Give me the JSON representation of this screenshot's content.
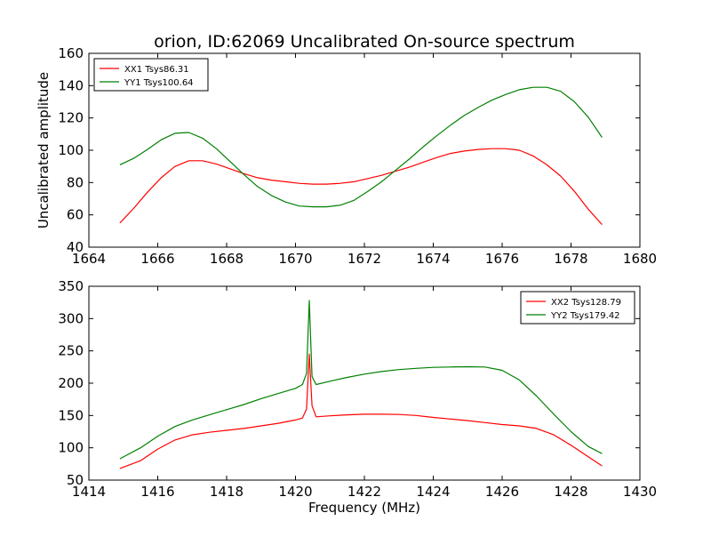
{
  "figure": {
    "title": "orion, ID:62069 Uncalibrated On-source spectrum",
    "xlabel": "Frequency (MHz)",
    "ylabel": "Uncalibrated amplitude"
  },
  "chart_data": [
    {
      "type": "line",
      "xlim": [
        1664,
        1680
      ],
      "ylim": [
        40,
        160
      ],
      "xticks": [
        1664,
        1666,
        1668,
        1670,
        1672,
        1674,
        1676,
        1678,
        1680
      ],
      "yticks": [
        40,
        60,
        80,
        100,
        120,
        140,
        160
      ],
      "legend_position": "top-left",
      "series": [
        {
          "name": "XX1 Tsys86.31",
          "color": "#ff0000",
          "x": [
            1664.9,
            1665.3,
            1665.7,
            1666.1,
            1666.5,
            1666.9,
            1667.3,
            1667.7,
            1668.1,
            1668.5,
            1668.9,
            1669.3,
            1669.7,
            1670.1,
            1670.5,
            1670.9,
            1671.3,
            1671.7,
            1672.1,
            1672.5,
            1672.9,
            1673.3,
            1673.7,
            1674.1,
            1674.5,
            1674.9,
            1675.3,
            1675.7,
            1676.1,
            1676.5,
            1676.9,
            1677.3,
            1677.7,
            1678.1,
            1678.5,
            1678.9
          ],
          "y": [
            55,
            64,
            74,
            83,
            90,
            93.5,
            93.5,
            91.5,
            88.5,
            85.5,
            83,
            81.5,
            80.5,
            79.5,
            79,
            79,
            79.5,
            80.5,
            82.5,
            84.5,
            87,
            89.5,
            92.5,
            95.5,
            98,
            99.5,
            100.5,
            101,
            101,
            100,
            96.5,
            91,
            84,
            74.5,
            63.5,
            54
          ]
        },
        {
          "name": "YY1 Tsys100.64",
          "color": "#008000",
          "x": [
            1664.9,
            1665.3,
            1665.7,
            1666.1,
            1666.5,
            1666.9,
            1667.3,
            1667.7,
            1668.1,
            1668.5,
            1668.9,
            1669.3,
            1669.7,
            1670.1,
            1670.5,
            1670.9,
            1671.3,
            1671.7,
            1672.1,
            1672.5,
            1672.9,
            1673.3,
            1673.7,
            1674.1,
            1674.5,
            1674.9,
            1675.3,
            1675.7,
            1676.1,
            1676.5,
            1676.9,
            1677.3,
            1677.7,
            1678.1,
            1678.5,
            1678.9
          ],
          "y": [
            91,
            95,
            100.5,
            106.5,
            110.5,
            111,
            107.5,
            101,
            93,
            85,
            77.5,
            72,
            68,
            65.5,
            65,
            65,
            66,
            69,
            74.5,
            80.5,
            87.5,
            94.5,
            102,
            109,
            115.5,
            121.5,
            126.5,
            131,
            134.5,
            137.5,
            139,
            139,
            136.5,
            130,
            120.5,
            108
          ]
        }
      ]
    },
    {
      "type": "line",
      "xlim": [
        1414,
        1430
      ],
      "ylim": [
        50,
        350
      ],
      "xticks": [
        1414,
        1416,
        1418,
        1420,
        1422,
        1424,
        1426,
        1428,
        1430
      ],
      "yticks": [
        50,
        100,
        150,
        200,
        250,
        300,
        350
      ],
      "legend_position": "top-right",
      "series": [
        {
          "name": "XX2 Tsys128.79",
          "color": "#ff0000",
          "x": [
            1414.9,
            1415.5,
            1416.0,
            1416.5,
            1417.0,
            1417.5,
            1418.0,
            1418.5,
            1419.0,
            1419.5,
            1420.0,
            1420.2,
            1420.32,
            1420.4,
            1420.48,
            1420.6,
            1421.0,
            1421.5,
            1422.0,
            1422.5,
            1423.0,
            1423.5,
            1424.0,
            1424.5,
            1425.0,
            1425.5,
            1426.0,
            1426.5,
            1427.0,
            1427.5,
            1428.0,
            1428.5,
            1428.9
          ],
          "y": [
            68,
            80,
            98,
            112,
            120,
            124,
            127,
            130,
            134,
            138,
            143,
            146,
            160,
            245,
            165,
            148,
            149.5,
            151,
            152,
            152,
            151.5,
            150,
            147,
            144.5,
            142,
            139,
            136,
            134,
            130,
            120,
            104,
            86,
            72
          ]
        },
        {
          "name": "YY2 Tsys179.42",
          "color": "#008000",
          "x": [
            1414.9,
            1415.5,
            1416.0,
            1416.5,
            1417.0,
            1417.5,
            1418.0,
            1418.5,
            1419.0,
            1419.5,
            1420.0,
            1420.2,
            1420.32,
            1420.4,
            1420.48,
            1420.6,
            1421.0,
            1421.5,
            1422.0,
            1422.5,
            1423.0,
            1423.5,
            1424.0,
            1424.5,
            1425.0,
            1425.5,
            1426.0,
            1426.5,
            1427.0,
            1427.5,
            1428.0,
            1428.5,
            1428.9
          ],
          "y": [
            83,
            100,
            118,
            133,
            143,
            151,
            159,
            167,
            176,
            184,
            192,
            198,
            215,
            328,
            210,
            198,
            203,
            209,
            214,
            218,
            221,
            223,
            224.5,
            225,
            225.5,
            225,
            220,
            205,
            180,
            152,
            125,
            102,
            91
          ]
        }
      ]
    }
  ]
}
